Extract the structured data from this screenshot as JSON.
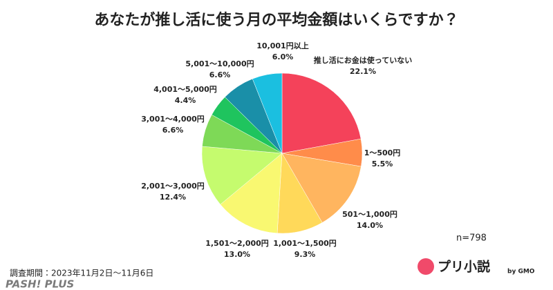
{
  "chart_data": {
    "type": "pie",
    "title": "あなたが推し活に使う月の平均金額はいくらですか？",
    "categories": [
      "推し活にお金は使っていない",
      "1〜500円",
      "501〜1,000円",
      "1,001〜1,500円",
      "1,501〜2,000円",
      "2,001〜3,000円",
      "3,001〜4,000円",
      "4,001〜5,000円",
      "5,001〜10,000円",
      "10,001円以上"
    ],
    "values": [
      22.1,
      5.5,
      14.0,
      9.3,
      13.0,
      12.4,
      6.6,
      4.4,
      6.6,
      6.0
    ],
    "value_labels": [
      "22.1%",
      "5.5%",
      "14.0%",
      "9.3%",
      "13.0%",
      "12.4%",
      "6.6%",
      "4.4%",
      "6.6%",
      "6.0%"
    ],
    "colors": [
      "#f4425a",
      "#ff8c4a",
      "#ffb55f",
      "#ffd95a",
      "#f9f871",
      "#c5fb6e",
      "#7ed957",
      "#1fc45e",
      "#1a8fa8",
      "#1bbfe0"
    ],
    "sample_size": "n=798",
    "note": "調査期間：2023年11月2日〜11月6日",
    "logo": "プリ小説",
    "logo_sub": "by GMO",
    "watermark": "PASH! PLUS"
  }
}
